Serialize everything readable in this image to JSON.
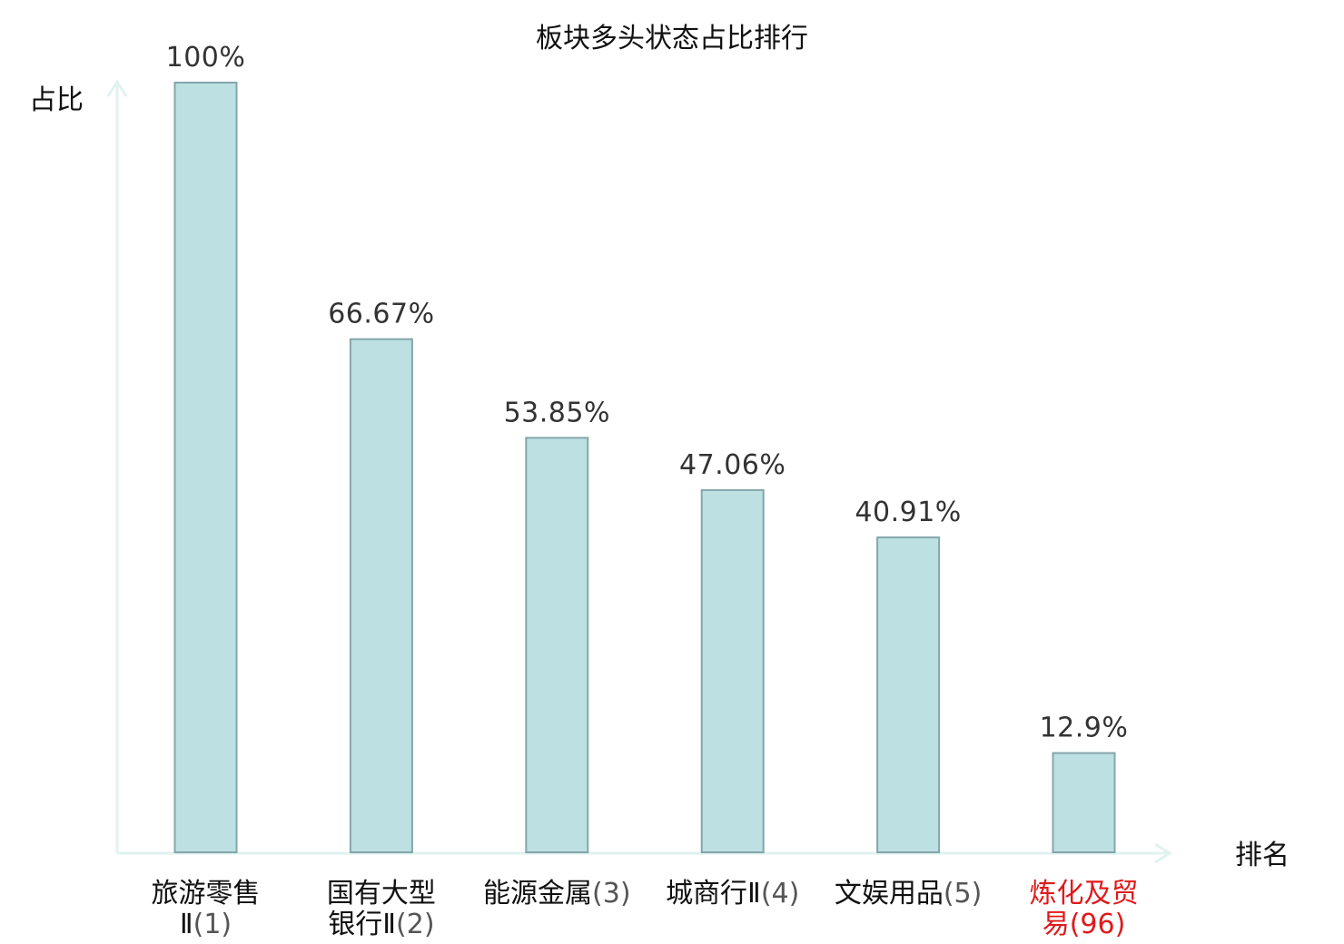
{
  "chart_data": {
    "type": "bar",
    "title": "板块多头状态占比排行",
    "ylabel": "占比",
    "xlabel": "排名",
    "ylim": [
      0,
      100
    ],
    "grid": false,
    "legend": "none",
    "categories": [
      {
        "name": [
          "旅游零售",
          "Ⅱ"
        ],
        "rank": "(1)",
        "highlight": false
      },
      {
        "name": [
          "国有大型",
          "银行Ⅱ"
        ],
        "rank": "(2)",
        "highlight": false
      },
      {
        "name": [
          "能源金属"
        ],
        "rank": "(3)",
        "highlight": false
      },
      {
        "name": [
          "城商行Ⅱ"
        ],
        "rank": "(4)",
        "highlight": false
      },
      {
        "name": [
          "文娱用品"
        ],
        "rank": "(5)",
        "highlight": false
      },
      {
        "name": [
          "炼化及贸",
          "易"
        ],
        "rank": "(96)",
        "highlight": true
      }
    ],
    "values": [
      100,
      66.67,
      53.85,
      47.06,
      40.91,
      12.9
    ],
    "value_labels": [
      "100%",
      "66.67%",
      "53.85%",
      "47.06%",
      "40.91%",
      "12.9%"
    ],
    "colors": {
      "bar_fill": "#bde0e3",
      "bar_stroke": "#84a6aa",
      "axis": "#e0f2f0",
      "highlight_text": "#e0191b",
      "normal_text": "#111111",
      "rank_text": "#555555"
    }
  }
}
